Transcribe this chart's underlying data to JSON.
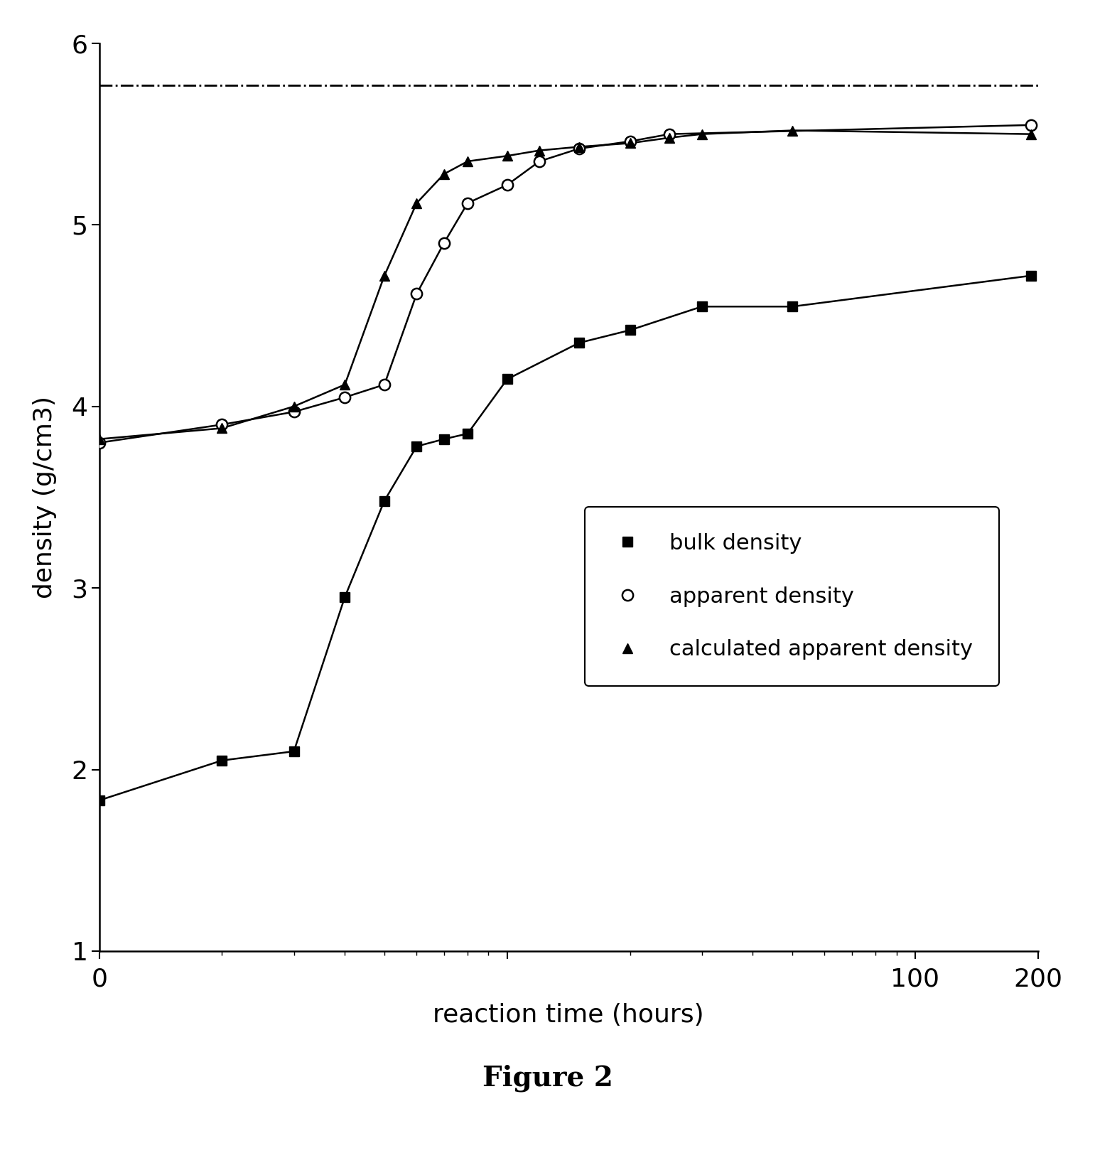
{
  "bulk_density_x": [
    1,
    2,
    3,
    4,
    5,
    6,
    7,
    8,
    10,
    15,
    20,
    30,
    50,
    192
  ],
  "bulk_density_y": [
    1.83,
    2.05,
    2.1,
    2.95,
    3.48,
    3.78,
    3.82,
    3.85,
    4.15,
    4.35,
    4.42,
    4.55,
    4.55,
    4.72
  ],
  "apparent_density_x": [
    1,
    2,
    3,
    4,
    5,
    6,
    7,
    8,
    10,
    12,
    15,
    20,
    25,
    192
  ],
  "apparent_density_y": [
    3.8,
    3.9,
    3.97,
    4.05,
    4.12,
    4.62,
    4.9,
    5.12,
    5.22,
    5.35,
    5.42,
    5.46,
    5.5,
    5.55
  ],
  "calc_apparent_density_x": [
    1,
    2,
    3,
    4,
    5,
    6,
    7,
    8,
    10,
    12,
    15,
    20,
    25,
    30,
    50,
    192
  ],
  "calc_apparent_density_y": [
    3.82,
    3.88,
    4.0,
    4.12,
    4.72,
    5.12,
    5.28,
    5.35,
    5.38,
    5.41,
    5.43,
    5.45,
    5.48,
    5.5,
    5.52,
    5.5
  ],
  "dashed_line_y": 5.77,
  "xlim_log": [
    1,
    200
  ],
  "ylim": [
    1,
    6
  ],
  "yticks": [
    1,
    2,
    3,
    4,
    5,
    6
  ],
  "xlabel": "reaction time (hours)",
  "ylabel": "density (g/cm3)",
  "figure_label": "Figure 2",
  "legend_entries": [
    "bulk density",
    "apparent density",
    "calculated apparent density"
  ],
  "bg_color": "#ffffff"
}
